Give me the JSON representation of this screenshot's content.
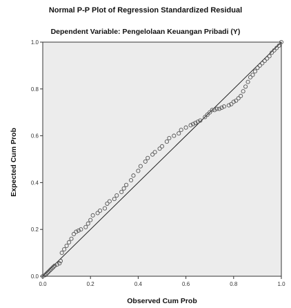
{
  "title": "Normal P-P Plot of Regression Standardized Residual",
  "subtitle": "Dependent Variable: Pengelolaan Keuangan Pribadi (Y)",
  "colors": {
    "background": "#ececec",
    "frame": "#333333",
    "points": "#555555",
    "line": "#222222"
  },
  "chart_data": {
    "type": "scatter",
    "title": "Normal P-P Plot of Regression Standardized Residual",
    "subtitle": "Dependent Variable: Pengelolaan Keuangan Pribadi (Y)",
    "xlabel": "Observed Cum Prob",
    "ylabel": "Expected Cum Prob",
    "xlim": [
      0,
      1
    ],
    "ylim": [
      0,
      1
    ],
    "xticks": [
      "0.0",
      "0.2",
      "0.4",
      "0.6",
      "0.8",
      "1.0"
    ],
    "yticks": [
      "0.0",
      "0.2",
      "0.4",
      "0.6",
      "0.8",
      "1.0"
    ],
    "reference_line": [
      [
        0,
        0
      ],
      [
        1,
        1
      ]
    ],
    "grid": false,
    "legend": "none",
    "points": [
      [
        0.0,
        0.0
      ],
      [
        0.01,
        0.005
      ],
      [
        0.015,
        0.01
      ],
      [
        0.02,
        0.015
      ],
      [
        0.025,
        0.02
      ],
      [
        0.03,
        0.025
      ],
      [
        0.035,
        0.03
      ],
      [
        0.04,
        0.035
      ],
      [
        0.045,
        0.04
      ],
      [
        0.05,
        0.045
      ],
      [
        0.06,
        0.05
      ],
      [
        0.07,
        0.055
      ],
      [
        0.075,
        0.065
      ],
      [
        0.08,
        0.1
      ],
      [
        0.09,
        0.115
      ],
      [
        0.1,
        0.13
      ],
      [
        0.11,
        0.145
      ],
      [
        0.12,
        0.16
      ],
      [
        0.13,
        0.18
      ],
      [
        0.14,
        0.19
      ],
      [
        0.15,
        0.195
      ],
      [
        0.16,
        0.2
      ],
      [
        0.18,
        0.21
      ],
      [
        0.19,
        0.225
      ],
      [
        0.2,
        0.24
      ],
      [
        0.21,
        0.26
      ],
      [
        0.23,
        0.27
      ],
      [
        0.24,
        0.28
      ],
      [
        0.26,
        0.29
      ],
      [
        0.27,
        0.31
      ],
      [
        0.28,
        0.32
      ],
      [
        0.3,
        0.33
      ],
      [
        0.31,
        0.345
      ],
      [
        0.33,
        0.36
      ],
      [
        0.34,
        0.375
      ],
      [
        0.35,
        0.39
      ],
      [
        0.37,
        0.41
      ],
      [
        0.38,
        0.43
      ],
      [
        0.4,
        0.45
      ],
      [
        0.41,
        0.47
      ],
      [
        0.43,
        0.49
      ],
      [
        0.44,
        0.505
      ],
      [
        0.46,
        0.52
      ],
      [
        0.47,
        0.53
      ],
      [
        0.49,
        0.545
      ],
      [
        0.5,
        0.555
      ],
      [
        0.52,
        0.575
      ],
      [
        0.53,
        0.59
      ],
      [
        0.55,
        0.6
      ],
      [
        0.57,
        0.61
      ],
      [
        0.58,
        0.625
      ],
      [
        0.6,
        0.635
      ],
      [
        0.62,
        0.645
      ],
      [
        0.63,
        0.65
      ],
      [
        0.64,
        0.655
      ],
      [
        0.65,
        0.66
      ],
      [
        0.66,
        0.665
      ],
      [
        0.68,
        0.68
      ],
      [
        0.69,
        0.69
      ],
      [
        0.7,
        0.7
      ],
      [
        0.71,
        0.71
      ],
      [
        0.72,
        0.71
      ],
      [
        0.73,
        0.715
      ],
      [
        0.74,
        0.715
      ],
      [
        0.75,
        0.72
      ],
      [
        0.76,
        0.725
      ],
      [
        0.78,
        0.73
      ],
      [
        0.79,
        0.735
      ],
      [
        0.8,
        0.745
      ],
      [
        0.81,
        0.75
      ],
      [
        0.82,
        0.76
      ],
      [
        0.83,
        0.77
      ],
      [
        0.84,
        0.79
      ],
      [
        0.85,
        0.81
      ],
      [
        0.86,
        0.83
      ],
      [
        0.87,
        0.85
      ],
      [
        0.88,
        0.86
      ],
      [
        0.89,
        0.875
      ],
      [
        0.9,
        0.89
      ],
      [
        0.91,
        0.9
      ],
      [
        0.92,
        0.91
      ],
      [
        0.93,
        0.92
      ],
      [
        0.94,
        0.93
      ],
      [
        0.95,
        0.94
      ],
      [
        0.96,
        0.955
      ],
      [
        0.97,
        0.965
      ],
      [
        0.98,
        0.975
      ],
      [
        0.99,
        0.985
      ],
      [
        1.0,
        1.0
      ]
    ]
  }
}
